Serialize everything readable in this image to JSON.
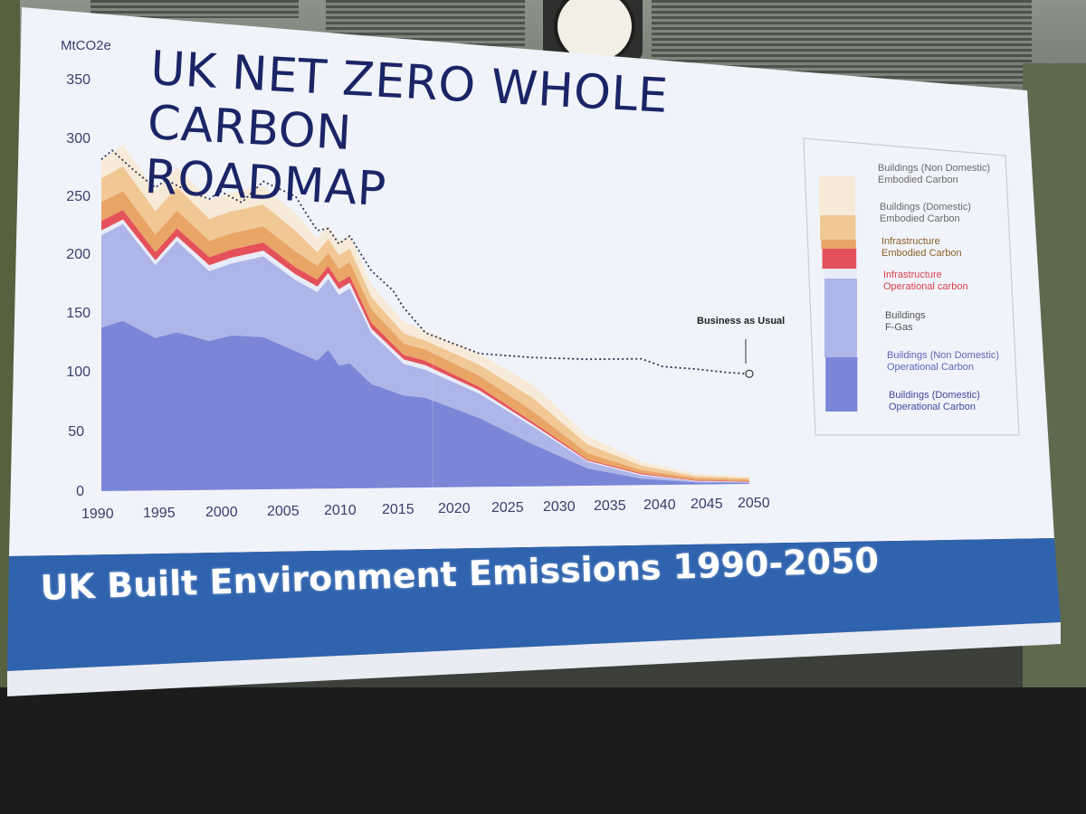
{
  "slide": {
    "title_line1": "UK NET ZERO WHOLE CARBON",
    "title_line2": "ROADMAP",
    "banner": "UK Built Environment Emissions 1990-2050"
  },
  "chart_data": {
    "type": "area",
    "title": "UK NET ZERO WHOLE CARBON ROADMAP",
    "ylabel": "MtCO2e",
    "ylim": [
      0,
      350
    ],
    "xlim": [
      1990,
      2050
    ],
    "yticks": [
      "350",
      "300",
      "250",
      "200",
      "150",
      "100",
      "50",
      "0"
    ],
    "xticks": [
      "1990",
      "1995",
      "2000",
      "2005",
      "2010",
      "2015",
      "2020",
      "2025",
      "2030",
      "2035",
      "2040",
      "2045",
      "2050"
    ],
    "x": [
      1990,
      1992,
      1995,
      1997,
      2000,
      2002,
      2005,
      2008,
      2010,
      2011,
      2012,
      2013,
      2015,
      2018,
      2020,
      2025,
      2030,
      2035,
      2040,
      2045,
      2050
    ],
    "stacked": true,
    "series": [
      {
        "name": "Buildings (Domestic) Operational Carbon",
        "color": "#7b86d6",
        "values": [
          138,
          144,
          130,
          135,
          128,
          133,
          132,
          120,
          112,
          122,
          108,
          110,
          92,
          82,
          80,
          62,
          38,
          16,
          6,
          2,
          1
        ]
      },
      {
        "name": "Buildings (Non Domestic) Operational Carbon",
        "color": "#aeb5e8",
        "values": [
          78,
          82,
          62,
          78,
          60,
          62,
          70,
          62,
          60,
          62,
          62,
          66,
          45,
          28,
          25,
          22,
          16,
          6,
          3,
          1,
          0.5
        ]
      },
      {
        "name": "Buildings F-Gas",
        "color": "#e8ecf8",
        "values": [
          4,
          4,
          4,
          4,
          5,
          5,
          5,
          5,
          5,
          5,
          5,
          5,
          4,
          4,
          4,
          3,
          2,
          1,
          1,
          0.5,
          0.5
        ]
      },
      {
        "name": "Infrastructure Operational carbon",
        "color": "#e5515a",
        "values": [
          8,
          8,
          7,
          7,
          7,
          7,
          7,
          6,
          6,
          6,
          6,
          6,
          5,
          4,
          4,
          3,
          2,
          1,
          1,
          0.5,
          0.5
        ]
      },
      {
        "name": "Infrastructure Embodied Carbon",
        "color": "#e9a566",
        "values": [
          16,
          16,
          15,
          15,
          14,
          14,
          14,
          14,
          12,
          12,
          12,
          12,
          12,
          10,
          10,
          10,
          10,
          6,
          3,
          2,
          1.5
        ]
      },
      {
        "name": "Buildings (Domestic) Embodied Carbon",
        "color": "#f1c894",
        "values": [
          20,
          21,
          20,
          20,
          19,
          19,
          19,
          18,
          12,
          12,
          12,
          12,
          11,
          9,
          8,
          10,
          12,
          8,
          4,
          2,
          1.5
        ]
      },
      {
        "name": "Buildings (Non Domestic) Embodied Carbon",
        "color": "#f7ead8",
        "values": [
          16,
          18,
          17,
          17,
          16,
          16,
          16,
          15,
          12,
          12,
          12,
          12,
          11,
          10,
          9,
          10,
          12,
          8,
          4,
          2,
          1.5
        ]
      }
    ],
    "business_as_usual": {
      "label": "Business as Usual",
      "x": [
        1990,
        1991,
        1993,
        1995,
        1996,
        1998,
        2000,
        2001,
        2003,
        2005,
        2006,
        2008,
        2009,
        2010,
        2011,
        2012,
        2013,
        2015,
        2017,
        2018,
        2020,
        2025,
        2030,
        2035,
        2040,
        2042,
        2045,
        2048,
        2050
      ],
      "values": [
        280,
        288,
        272,
        258,
        265,
        256,
        250,
        257,
        248,
        267,
        263,
        255,
        240,
        226,
        228,
        215,
        222,
        192,
        175,
        160,
        138,
        120,
        117,
        116,
        117,
        110,
        108,
        105,
        104
      ]
    },
    "legend": {
      "placement": "right",
      "items": [
        {
          "line1": "Buildings (Non Domestic)",
          "line2": "Embodied Carbon",
          "color": "#6a6a6a"
        },
        {
          "line1": "Buildings (Domestic)",
          "line2": "Embodied Carbon",
          "color": "#6a6a6a"
        },
        {
          "line1": "Infrastructure",
          "line2": "Embodied Carbon",
          "color": "#9a6a30"
        },
        {
          "line1": "Infrastructure",
          "line2": "Operational carbon",
          "color": "#d8404a"
        },
        {
          "line1": "Buildings",
          "line2": "F-Gas",
          "color": "#555555"
        },
        {
          "line1": "Buildings (Non Domestic)",
          "line2": "Operational Carbon",
          "color": "#5a66b8"
        },
        {
          "line1": "Buildings (Domestic)",
          "line2": "Operational Carbon",
          "color": "#3d48a0"
        }
      ]
    },
    "grid": false
  }
}
